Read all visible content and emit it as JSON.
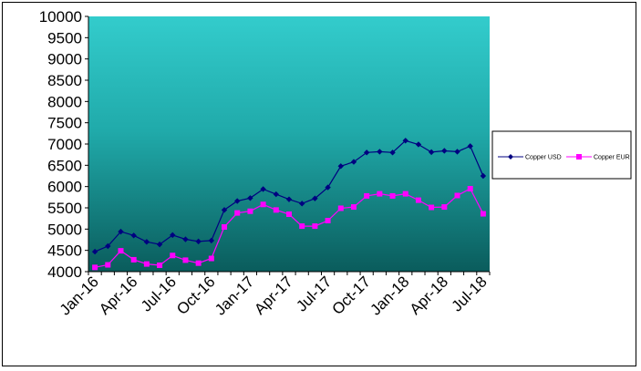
{
  "chart_data": {
    "type": "line",
    "title": "",
    "xlabel": "",
    "ylabel": "",
    "ylim": [
      4000,
      10000
    ],
    "y_ticks": [
      4000,
      4500,
      5000,
      5500,
      6000,
      6500,
      7000,
      7500,
      8000,
      8500,
      9000,
      9500,
      10000
    ],
    "categories": [
      "Jan-16",
      "Feb-16",
      "Mar-16",
      "Apr-16",
      "May-16",
      "Jun-16",
      "Jul-16",
      "Aug-16",
      "Sep-16",
      "Oct-16",
      "Nov-16",
      "Dec-16",
      "Jan-17",
      "Feb-17",
      "Mar-17",
      "Apr-17",
      "May-17",
      "Jun-17",
      "Jul-17",
      "Aug-17",
      "Sep-17",
      "Oct-17",
      "Nov-17",
      "Dec-17",
      "Jan-18",
      "Feb-18",
      "Mar-18",
      "Apr-18",
      "May-18",
      "Jun-18",
      "Jul-18"
    ],
    "x_tick_labels": [
      "Jan-16",
      "Apr-16",
      "Jul-16",
      "Oct-16",
      "Jan-17",
      "Apr-17",
      "Jul-17",
      "Oct-17",
      "Jan-18",
      "Apr-18",
      "Jul-18"
    ],
    "grid": false,
    "legend_position": "right",
    "background": "vertical gradient from turquoise (top) to dark teal (bottom)",
    "series": [
      {
        "name": "Copper USD",
        "color": "#000080",
        "marker": "diamond",
        "values": [
          4470,
          4600,
          4940,
          4850,
          4700,
          4640,
          4860,
          4760,
          4710,
          4730,
          5450,
          5660,
          5730,
          5940,
          5820,
          5700,
          5600,
          5720,
          5980,
          6480,
          6580,
          6800,
          6820,
          6800,
          7080,
          6990,
          6810,
          6840,
          6820,
          6950,
          6250
        ]
      },
      {
        "name": "Copper EUR",
        "color": "#ff00ff",
        "marker": "square",
        "values": [
          4100,
          4160,
          4490,
          4280,
          4180,
          4150,
          4380,
          4270,
          4200,
          4310,
          5050,
          5380,
          5420,
          5580,
          5450,
          5350,
          5070,
          5070,
          5200,
          5490,
          5520,
          5780,
          5830,
          5780,
          5830,
          5680,
          5510,
          5520,
          5790,
          5950,
          5360
        ]
      }
    ]
  },
  "legend": {
    "items": [
      {
        "label": "Copper USD",
        "color": "#000080",
        "marker": "diamond"
      },
      {
        "label": "Copper EUR",
        "color": "#ff00ff",
        "marker": "square"
      }
    ]
  }
}
